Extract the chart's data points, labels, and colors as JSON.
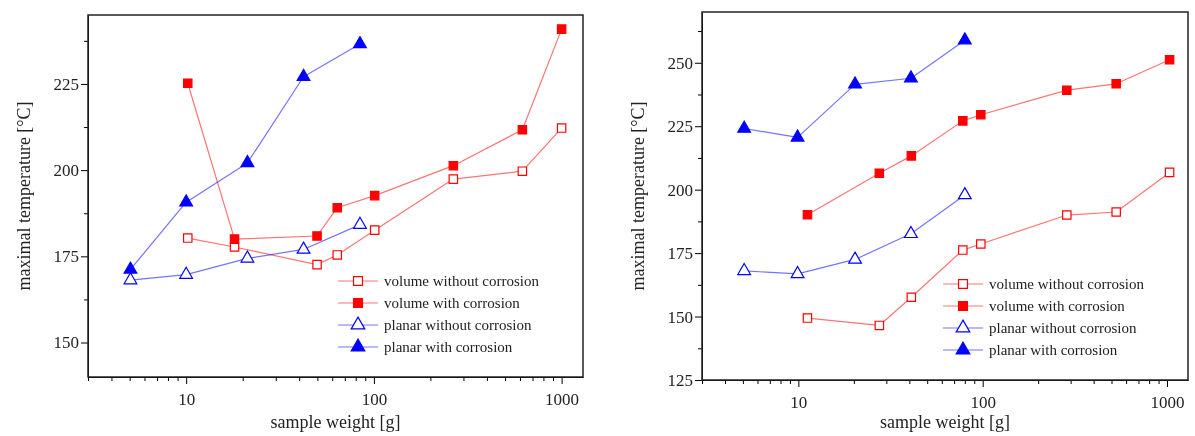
{
  "chart_data": [
    {
      "type": "line",
      "xlabel": "sample weight [g]",
      "ylabel": "maximal temperature [°C]",
      "log": "x",
      "legend": "bottom right",
      "grid": false,
      "xlim": [
        3,
        1300
      ],
      "xticks": [
        {
          "value": 3,
          "label": null
        },
        {
          "value": 4,
          "label": null
        },
        {
          "value": 5,
          "label": null
        },
        {
          "value": 6,
          "label": null
        },
        {
          "value": 7,
          "label": null
        },
        {
          "value": 8,
          "label": null
        },
        {
          "value": 9,
          "label": null
        },
        10,
        {
          "value": 20,
          "label": null
        },
        {
          "value": 30,
          "label": null
        },
        {
          "value": 40,
          "label": null
        },
        {
          "value": 50,
          "label": null
        },
        {
          "value": 60,
          "label": null
        },
        {
          "value": 70,
          "label": null
        },
        {
          "value": 80,
          "label": null
        },
        {
          "value": 90,
          "label": null
        },
        100,
        {
          "value": 200,
          "label": null
        },
        {
          "value": 300,
          "label": null
        },
        {
          "value": 400,
          "label": null
        },
        {
          "value": 500,
          "label": null
        },
        {
          "value": 600,
          "label": null
        },
        {
          "value": 700,
          "label": null
        },
        {
          "value": 800,
          "label": null
        },
        {
          "value": 900,
          "label": null
        },
        1000
      ],
      "ylim": [
        140,
        245
      ],
      "yticks": [
        150,
        {
          "value": 162.5,
          "label": null
        },
        175,
        {
          "value": 187.5,
          "label": null
        },
        200,
        {
          "value": 212.5,
          "label": null
        },
        225,
        {
          "value": 237.5,
          "label": null
        }
      ],
      "series": [
        {
          "name": "volume without corrosion",
          "color": "#ff0000",
          "marker": "square",
          "x": [
            10.2,
            18.1,
            49.8,
            63.8,
            101,
            265,
            618,
            1000
          ],
          "values": [
            180.3,
            177.7,
            172.6,
            175.4,
            182.6,
            197.4,
            199.7,
            212.2
          ]
        },
        {
          "name": "volume with corrosion",
          "color": "#ff0000",
          "marker": "square",
          "x": [
            10.2,
            18.1,
            49.8,
            63.8,
            101,
            265,
            618,
            1000
          ],
          "values": [
            225.2,
            180,
            180.9,
            189.1,
            192.6,
            201.3,
            211.7,
            240.9
          ]
        },
        {
          "name": "planar without corrosion",
          "color": "#0000ff",
          "marker": "triangle",
          "x": [
            5.05,
            10,
            21.2,
            42.2,
            84.3
          ],
          "values": [
            168.1,
            169.7,
            174.4,
            177,
            184.2
          ]
        },
        {
          "name": "planar with corrosion",
          "color": "#0000ff",
          "marker": "triangle",
          "x": [
            5.05,
            10,
            21.2,
            42.2,
            84.3
          ],
          "values": [
            171.2,
            190.7,
            202.1,
            227.1,
            236.6
          ]
        }
      ]
    },
    {
      "type": "line",
      "xlabel": "sample weight [g]",
      "ylabel": "maximal temperature [°C]",
      "log": "x",
      "legend": "bottom right",
      "grid": false,
      "xlim": [
        3,
        1300
      ],
      "xticks": [
        {
          "value": 3,
          "label": null
        },
        {
          "value": 4,
          "label": null
        },
        {
          "value": 5,
          "label": null
        },
        {
          "value": 6,
          "label": null
        },
        {
          "value": 7,
          "label": null
        },
        {
          "value": 8,
          "label": null
        },
        {
          "value": 9,
          "label": null
        },
        10,
        {
          "value": 20,
          "label": null
        },
        {
          "value": 30,
          "label": null
        },
        {
          "value": 40,
          "label": null
        },
        {
          "value": 50,
          "label": null
        },
        {
          "value": 60,
          "label": null
        },
        {
          "value": 70,
          "label": null
        },
        {
          "value": 80,
          "label": null
        },
        {
          "value": 90,
          "label": null
        },
        100,
        {
          "value": 200,
          "label": null
        },
        {
          "value": 300,
          "label": null
        },
        {
          "value": 400,
          "label": null
        },
        {
          "value": 500,
          "label": null
        },
        {
          "value": 600,
          "label": null
        },
        {
          "value": 700,
          "label": null
        },
        {
          "value": 800,
          "label": null
        },
        {
          "value": 900,
          "label": null
        },
        1000
      ],
      "ylim": [
        125,
        270
      ],
      "yticks": [
        125,
        {
          "value": 137.5,
          "label": null
        },
        150,
        {
          "value": 162.5,
          "label": null
        },
        175,
        {
          "value": 187.5,
          "label": null
        },
        200,
        {
          "value": 212.5,
          "label": null
        },
        225,
        {
          "value": 237.5,
          "label": null
        },
        250,
        {
          "value": 262.5,
          "label": null
        }
      ],
      "series": [
        {
          "name": "volume without corrosion",
          "color": "#ff0000",
          "marker": "square",
          "x": [
            11.2,
            27.5,
            41,
            78,
            97.7,
            286,
            530,
            1033
          ],
          "values": [
            149.4,
            146.5,
            157.6,
            176.2,
            178.6,
            190,
            191.2,
            206.8
          ]
        },
        {
          "name": "volume with corrosion",
          "color": "#ff0000",
          "marker": "square",
          "x": [
            11.2,
            27.5,
            41,
            78,
            97.7,
            286,
            530,
            1033
          ],
          "values": [
            190.1,
            206.5,
            213.3,
            227.1,
            229.5,
            239.2,
            241.7,
            251.2
          ]
        },
        {
          "name": "planar without corrosion",
          "color": "#0000ff",
          "marker": "triangle",
          "x": [
            5.08,
            9.9,
            20.3,
            40.8,
            80
          ],
          "values": [
            168,
            166.8,
            172.5,
            182.6,
            197.9
          ]
        },
        {
          "name": "planar with corrosion",
          "color": "#0000ff",
          "marker": "triangle",
          "x": [
            5.08,
            9.9,
            20.3,
            40.8,
            80
          ],
          "values": [
            224.1,
            220.6,
            241.5,
            243.9,
            258.9
          ]
        }
      ]
    }
  ]
}
